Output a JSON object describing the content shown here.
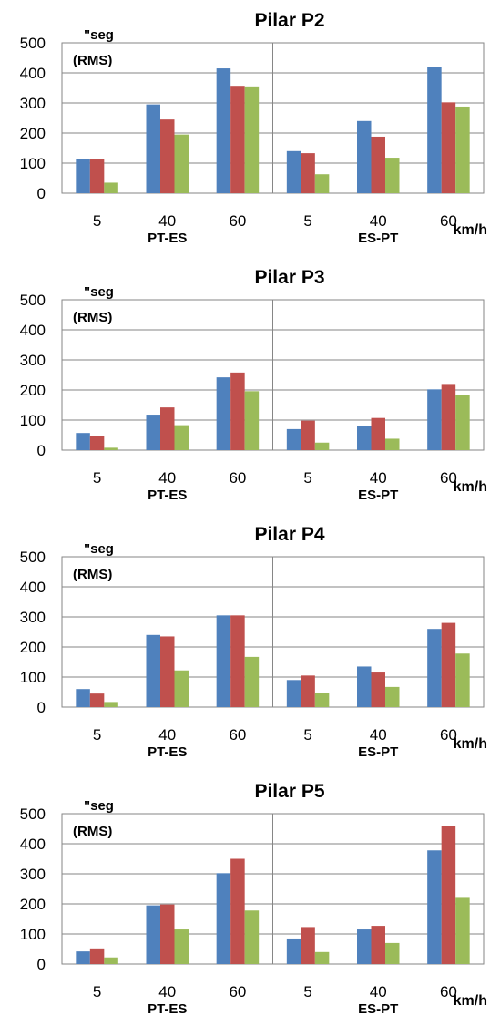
{
  "chart_data": [
    {
      "type": "bar",
      "title": "Pilar P2",
      "ylabel_line1": "\"seg",
      "ylabel_line2": "(RMS)",
      "xunit": "km/h",
      "categories": [
        "5",
        "40",
        "60",
        "5",
        "40",
        "60"
      ],
      "groups": [
        "PT-ES",
        "ES-PT"
      ],
      "ylim": [
        0,
        500
      ],
      "yticks": [
        0,
        100,
        200,
        300,
        400,
        500
      ],
      "series": [
        {
          "color": "#4F81BD",
          "values": [
            115,
            295,
            415,
            140,
            240,
            420
          ]
        },
        {
          "color": "#C0504D",
          "values": [
            115,
            245,
            357,
            133,
            188,
            302
          ]
        },
        {
          "color": "#9BBB59",
          "values": [
            35,
            195,
            355,
            63,
            118,
            288
          ]
        }
      ]
    },
    {
      "type": "bar",
      "title": "Pilar P3",
      "ylabel_line1": "\"seg",
      "ylabel_line2": "(RMS)",
      "xunit": "km/h",
      "categories": [
        "5",
        "40",
        "60",
        "5",
        "40",
        "60"
      ],
      "groups": [
        "PT-ES",
        "ES-PT"
      ],
      "ylim": [
        0,
        500
      ],
      "yticks": [
        0,
        100,
        200,
        300,
        400,
        500
      ],
      "series": [
        {
          "color": "#4F81BD",
          "values": [
            57,
            118,
            242,
            70,
            80,
            202
          ]
        },
        {
          "color": "#C0504D",
          "values": [
            48,
            142,
            258,
            98,
            107,
            220
          ]
        },
        {
          "color": "#9BBB59",
          "values": [
            8,
            83,
            196,
            25,
            38,
            183
          ]
        }
      ]
    },
    {
      "type": "bar",
      "title": "Pilar P4",
      "ylabel_line1": "\"seg",
      "ylabel_line2": "(RMS)",
      "xunit": "km/h",
      "categories": [
        "5",
        "40",
        "60",
        "5",
        "40",
        "60"
      ],
      "groups": [
        "PT-ES",
        "ES-PT"
      ],
      "ylim": [
        0,
        500
      ],
      "yticks": [
        0,
        100,
        200,
        300,
        400,
        500
      ],
      "series": [
        {
          "color": "#4F81BD",
          "values": [
            60,
            240,
            305,
            90,
            135,
            260
          ]
        },
        {
          "color": "#C0504D",
          "values": [
            45,
            235,
            305,
            105,
            115,
            280
          ]
        },
        {
          "color": "#9BBB59",
          "values": [
            17,
            122,
            167,
            47,
            67,
            178
          ]
        }
      ]
    },
    {
      "type": "bar",
      "title": "Pilar P5",
      "ylabel_line1": "\"seg",
      "ylabel_line2": "(RMS)",
      "xunit": "km/h",
      "categories": [
        "5",
        "40",
        "60",
        "5",
        "40",
        "60"
      ],
      "groups": [
        "PT-ES",
        "ES-PT"
      ],
      "ylim": [
        0,
        500
      ],
      "yticks": [
        0,
        100,
        200,
        300,
        400,
        500
      ],
      "series": [
        {
          "color": "#4F81BD",
          "values": [
            42,
            195,
            302,
            85,
            115,
            378
          ]
        },
        {
          "color": "#C0504D",
          "values": [
            52,
            198,
            350,
            123,
            127,
            460
          ]
        },
        {
          "color": "#9BBB59",
          "values": [
            22,
            115,
            178,
            40,
            70,
            223
          ]
        }
      ]
    }
  ]
}
